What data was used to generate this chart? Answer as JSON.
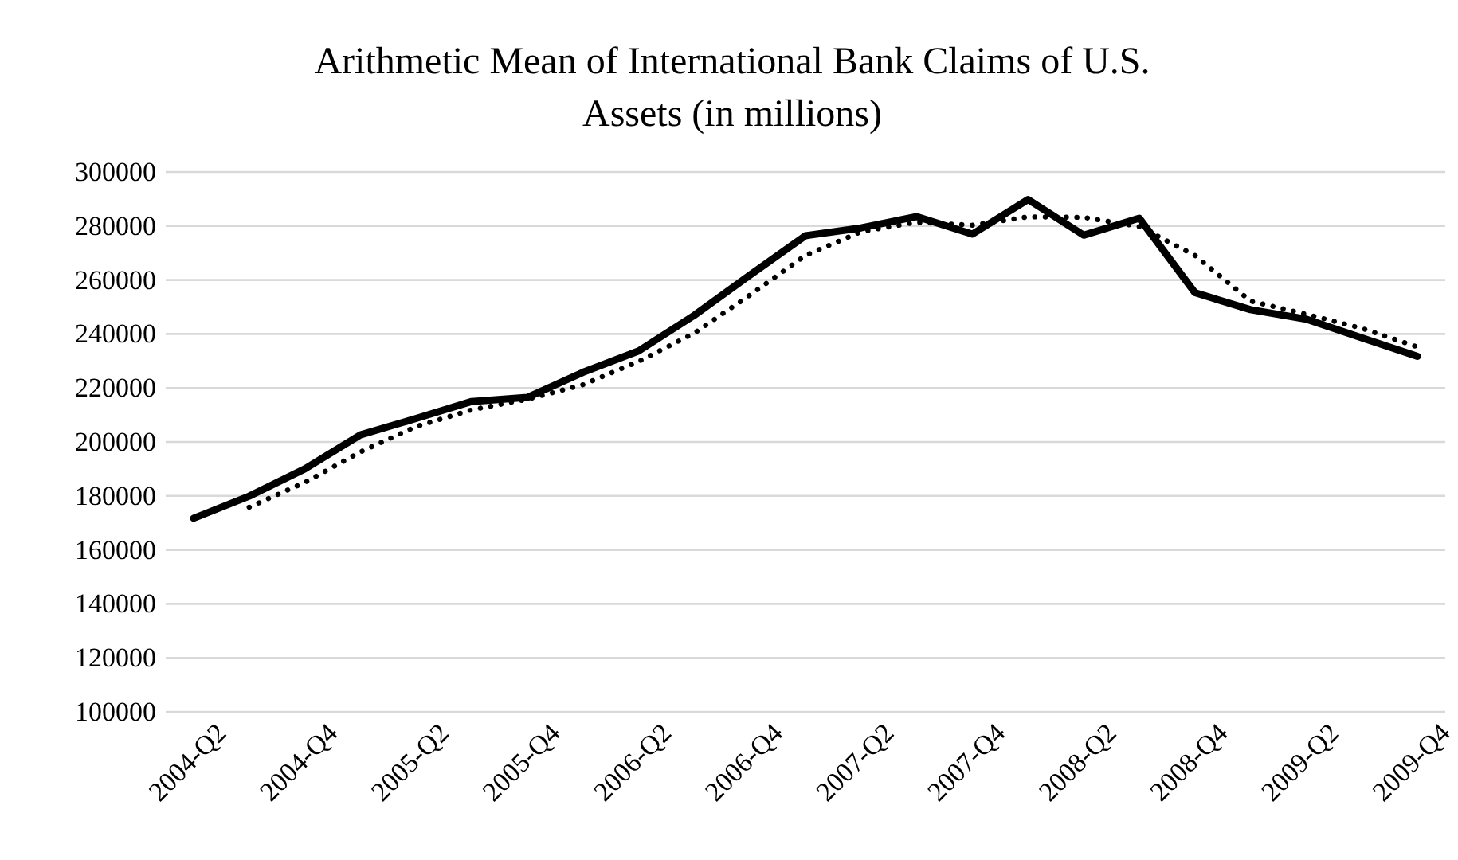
{
  "chart_data": {
    "type": "line",
    "title": "Arithmetic Mean of International Bank Claims of U.S. Assets (in millions)",
    "categories": [
      "2004-Q2",
      null,
      "2004-Q4",
      null,
      "2005-Q2",
      null,
      "2005-Q4",
      null,
      "2006-Q2",
      null,
      "2006-Q4",
      null,
      "2007-Q2",
      null,
      "2007-Q4",
      null,
      "2008-Q2",
      null,
      "2008-Q4",
      null,
      "2009-Q2",
      null,
      "2009-Q4"
    ],
    "series": [
      {
        "color": "#000000",
        "line_style": "solid",
        "values": [
          171700,
          179900,
          190000,
          202600,
          208700,
          215000,
          216500,
          225800,
          233700,
          246900,
          261800,
          276400,
          279300,
          283500,
          277000,
          289800,
          276600,
          282900,
          255300,
          249000,
          245500,
          238600,
          231700
        ]
      },
      {
        "color": "#000000",
        "line_style": "dotted",
        "values": [
          null,
          175800,
          185000,
          196300,
          205700,
          211900,
          215800,
          221200,
          229800,
          240300,
          254400,
          269100,
          277900,
          281400,
          280300,
          283400,
          283200,
          279800,
          269100,
          252200,
          247300,
          242100,
          235200
        ]
      }
    ],
    "ylim": [
      100000,
      300000
    ],
    "yticks": [
      100000,
      120000,
      140000,
      160000,
      180000,
      200000,
      220000,
      240000,
      260000,
      280000,
      300000
    ],
    "grid": "y",
    "marker": "none"
  }
}
